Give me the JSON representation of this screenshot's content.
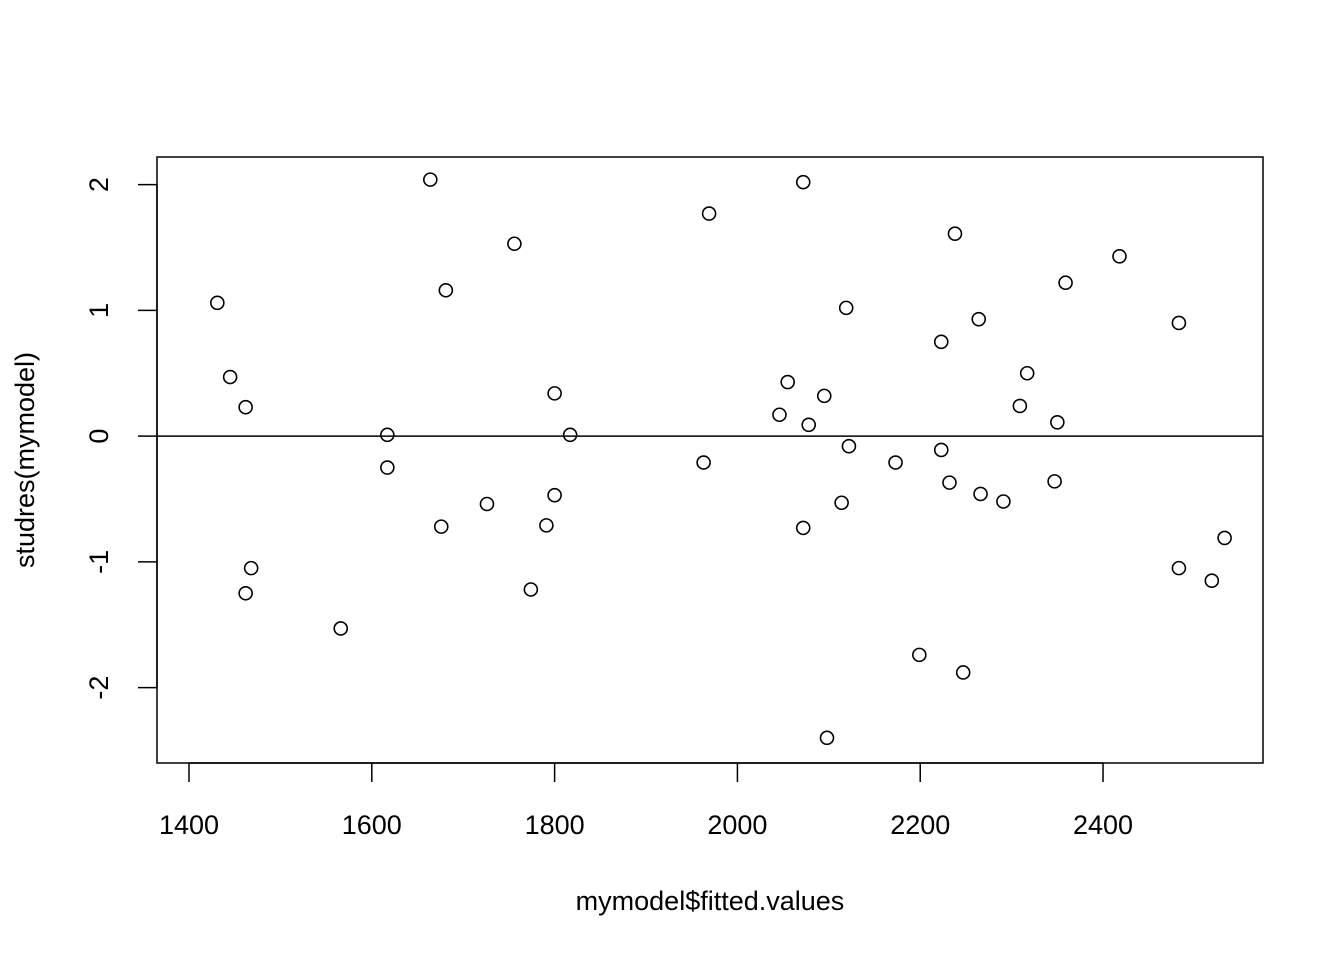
{
  "chart_data": {
    "type": "scatter",
    "title": "",
    "xlabel": "mymodel$fitted.values",
    "ylabel": "studres(mymodel)",
    "xlim": [
      1365,
      2575
    ],
    "ylim": [
      -2.6,
      2.22
    ],
    "x_ticks": [
      1400,
      1600,
      1800,
      2000,
      2200,
      2400
    ],
    "x_tick_labels": [
      "1400",
      "1600",
      "1800",
      "2000",
      "2200",
      "2400"
    ],
    "y_ticks": [
      -2,
      -1,
      0,
      1,
      2
    ],
    "y_tick_labels": [
      "-2",
      "-1",
      "0",
      "1",
      "2"
    ],
    "reference_line": {
      "y": 0
    },
    "marker": "open-circle",
    "grid": false,
    "points": [
      {
        "x": 1431,
        "y": 1.06
      },
      {
        "x": 1445,
        "y": 0.47
      },
      {
        "x": 1462,
        "y": 0.23
      },
      {
        "x": 1468,
        "y": -1.05
      },
      {
        "x": 1462,
        "y": -1.25
      },
      {
        "x": 1566,
        "y": -1.53
      },
      {
        "x": 1617,
        "y": 0.01
      },
      {
        "x": 1617,
        "y": -0.25
      },
      {
        "x": 1664,
        "y": 2.04
      },
      {
        "x": 1676,
        "y": -0.72
      },
      {
        "x": 1681,
        "y": 1.16
      },
      {
        "x": 1726,
        "y": -0.54
      },
      {
        "x": 1756,
        "y": 1.53
      },
      {
        "x": 1774,
        "y": -1.22
      },
      {
        "x": 1791,
        "y": -0.71
      },
      {
        "x": 1800,
        "y": 0.34
      },
      {
        "x": 1800,
        "y": -0.47
      },
      {
        "x": 1817,
        "y": 0.01
      },
      {
        "x": 1963,
        "y": -0.21
      },
      {
        "x": 1969,
        "y": 1.77
      },
      {
        "x": 2046,
        "y": 0.17
      },
      {
        "x": 2055,
        "y": 0.43
      },
      {
        "x": 2072,
        "y": 2.02
      },
      {
        "x": 2072,
        "y": -0.73
      },
      {
        "x": 2078,
        "y": 0.09
      },
      {
        "x": 2095,
        "y": 0.32
      },
      {
        "x": 2098,
        "y": -2.4
      },
      {
        "x": 2114,
        "y": -0.53
      },
      {
        "x": 2119,
        "y": 1.02
      },
      {
        "x": 2122,
        "y": -0.08
      },
      {
        "x": 2173,
        "y": -0.21
      },
      {
        "x": 2199,
        "y": -1.74
      },
      {
        "x": 2223,
        "y": 0.75
      },
      {
        "x": 2223,
        "y": -0.11
      },
      {
        "x": 2232,
        "y": -0.37
      },
      {
        "x": 2238,
        "y": 1.61
      },
      {
        "x": 2247,
        "y": -1.88
      },
      {
        "x": 2264,
        "y": 0.93
      },
      {
        "x": 2266,
        "y": -0.46
      },
      {
        "x": 2291,
        "y": -0.52
      },
      {
        "x": 2309,
        "y": 0.24
      },
      {
        "x": 2317,
        "y": 0.5
      },
      {
        "x": 2347,
        "y": -0.36
      },
      {
        "x": 2350,
        "y": 0.11
      },
      {
        "x": 2359,
        "y": 1.22
      },
      {
        "x": 2418,
        "y": 1.43
      },
      {
        "x": 2483,
        "y": 0.9
      },
      {
        "x": 2483,
        "y": -1.05
      },
      {
        "x": 2519,
        "y": -1.15
      },
      {
        "x": 2533,
        "y": -0.81
      }
    ]
  }
}
